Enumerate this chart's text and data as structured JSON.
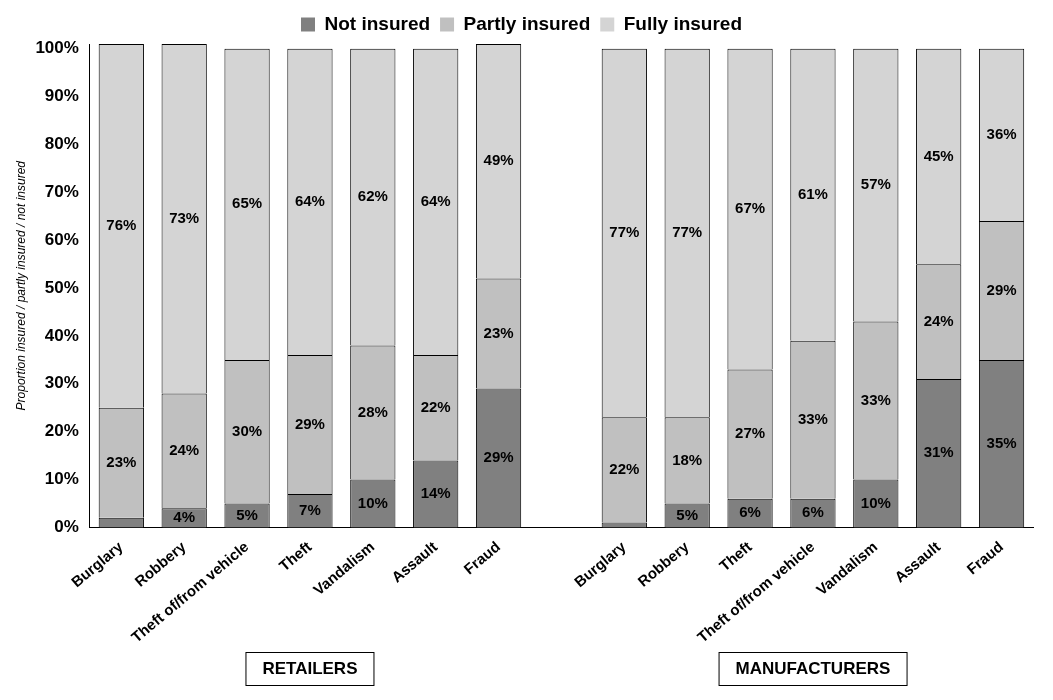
{
  "chart_data": {
    "type": "bar",
    "stacked": true,
    "ylabel": "Proportion insured / partly insured / not insured",
    "categories": [
      "Burglary",
      "Robbery",
      "Theft of/from vehicle",
      "Theft",
      "Vandalism",
      "Assault",
      "Fraud",
      null,
      "Burglary",
      "Robbery",
      "Theft",
      "Theft of/from vehicle",
      "Vandalism",
      "Assault",
      "Fraud"
    ],
    "series": [
      {
        "name": "Not insured",
        "color": "#808080",
        "values": [
          2,
          4,
          5,
          7,
          10,
          14,
          29,
          null,
          1,
          5,
          6,
          6,
          10,
          31,
          35
        ],
        "value_labels": [
          null,
          "4%",
          "5%",
          "7%",
          "10%",
          "14%",
          "29%",
          null,
          null,
          "5%",
          "6%",
          "6%",
          "10%",
          "31%",
          "35%"
        ]
      },
      {
        "name": "Partly insured",
        "color": "#c0c0c0",
        "values": [
          23,
          24,
          30,
          29,
          28,
          22,
          23,
          null,
          22,
          18,
          27,
          33,
          33,
          24,
          29
        ],
        "value_labels": [
          "23%",
          "24%",
          "30%",
          "29%",
          "28%",
          "22%",
          "23%",
          null,
          "22%",
          "18%",
          "27%",
          "33%",
          "33%",
          "24%",
          "29%"
        ]
      },
      {
        "name": "Fully insured",
        "color": "#d4d4d4",
        "values": [
          76,
          73,
          65,
          64,
          62,
          64,
          49,
          null,
          77,
          77,
          67,
          61,
          57,
          45,
          36
        ],
        "value_labels": [
          "76%",
          "73%",
          "65%",
          "64%",
          "62%",
          "64%",
          "49%",
          null,
          "77%",
          "77%",
          "67%",
          "61%",
          "57%",
          "45%",
          "36%"
        ]
      }
    ],
    "ylim": [
      0,
      101
    ],
    "yticks": [
      {
        "value": 0,
        "label": "0%"
      },
      {
        "value": 10,
        "label": "10%"
      },
      {
        "value": 20,
        "label": "20%"
      },
      {
        "value": 30,
        "label": "30%"
      },
      {
        "value": 40,
        "label": "40%"
      },
      {
        "value": 50,
        "label": "50%"
      },
      {
        "value": 60,
        "label": "60%"
      },
      {
        "value": 70,
        "label": "70%"
      },
      {
        "value": 80,
        "label": "80%"
      },
      {
        "value": 90,
        "label": "90%"
      },
      {
        "value": 100,
        "label": "100%"
      }
    ],
    "grid": false,
    "legend": "top",
    "annotations": [
      "RETAILERS",
      "MANUFACTURERS"
    ]
  }
}
